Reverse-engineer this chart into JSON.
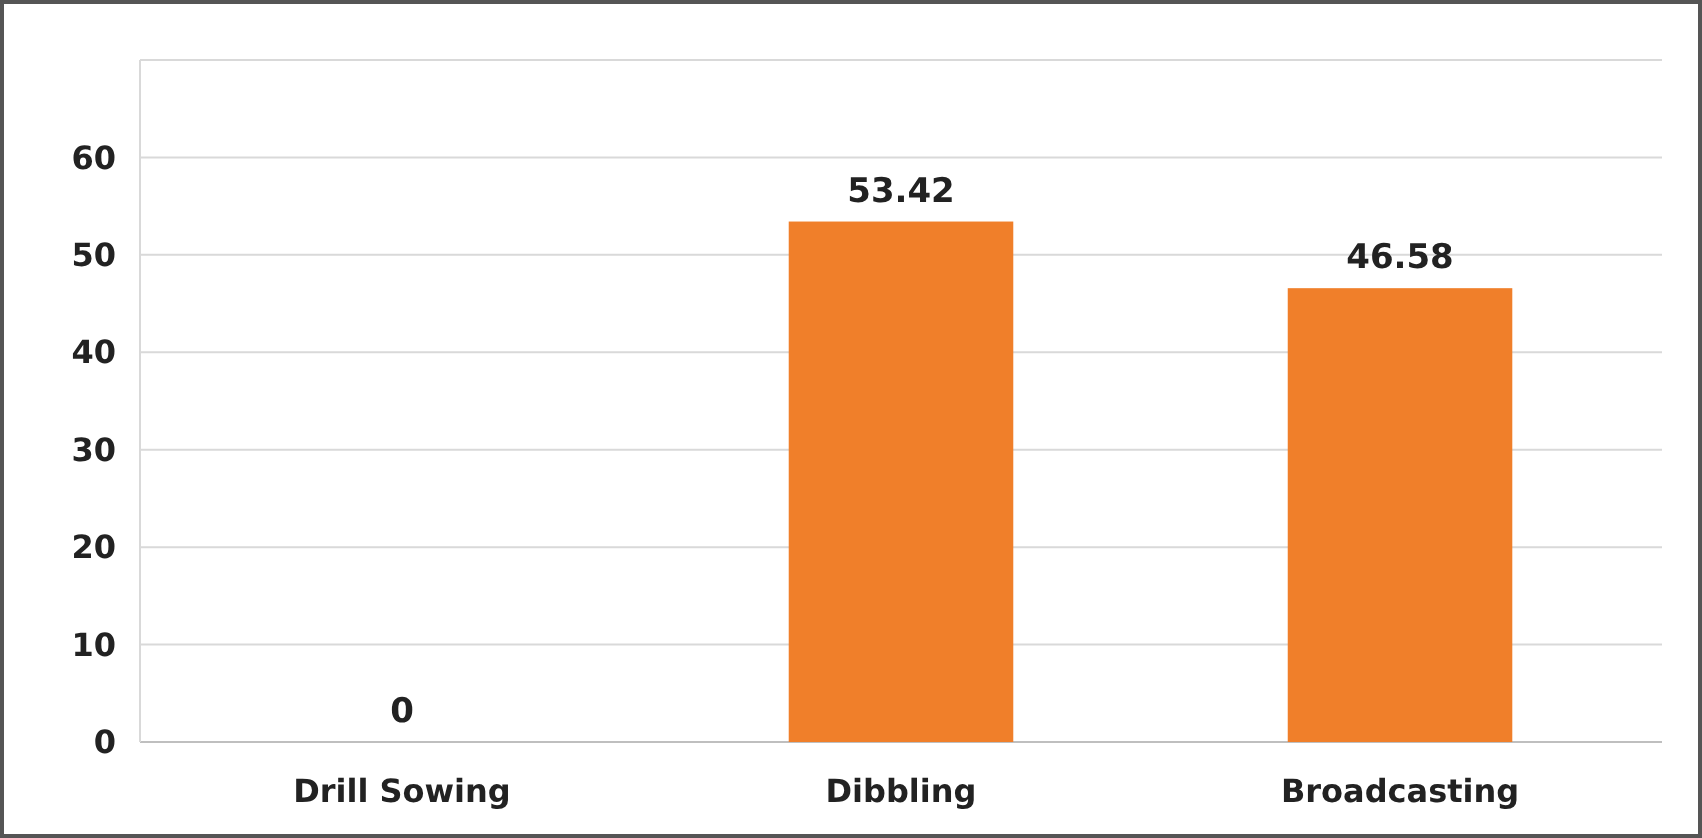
{
  "chart_data": {
    "type": "bar",
    "categories": [
      "Drill Sowing",
      "Dibbling",
      "Broadcasting"
    ],
    "values": [
      0,
      53.42,
      46.58
    ],
    "colors": [
      "#4a2308",
      "#f07f2a",
      "#f07f2a"
    ],
    "ylim": [
      0,
      70
    ],
    "yticks": [
      0,
      10,
      20,
      30,
      40,
      50,
      60,
      {
        "value": 70,
        "label": null
      }
    ],
    "grid": "y",
    "data_labels": true
  }
}
